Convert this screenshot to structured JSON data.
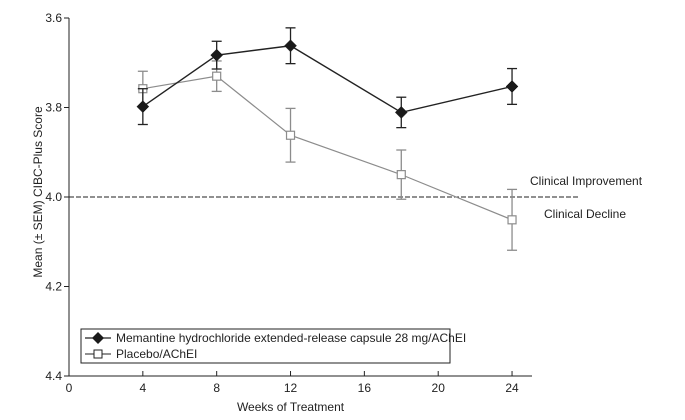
{
  "chart_data": {
    "type": "line",
    "title": "",
    "xlabel": "Weeks of Treatment",
    "ylabel": "Mean (± SEM) CIBC-Plus Score",
    "xlim": [
      0,
      25
    ],
    "ylim": [
      3.6,
      4.4
    ],
    "y_inverted": true,
    "x_ticks": [
      0,
      4,
      8,
      12,
      16,
      20,
      24
    ],
    "x_tick_labels": [
      "0",
      "4",
      "8",
      "12",
      "16",
      "20",
      "24"
    ],
    "y_ticks": [
      3.6,
      3.8,
      4.0,
      4.2,
      4.4
    ],
    "y_tick_labels": [
      "3.6",
      "3.8",
      "4.0",
      "4.2",
      "4.4"
    ],
    "grid": false,
    "reference_line": {
      "y": 4.0,
      "style": "dashed"
    },
    "annotations": [
      {
        "text": "Clinical Improvement",
        "x": 25,
        "y": 3.985
      },
      {
        "text": "Clinical Decline",
        "x": 25,
        "y": 4.02
      }
    ],
    "legend_position": "bottom-left",
    "series": [
      {
        "name": "Memantine hydrochloride extended-release capsule 28 mg/AChEI",
        "marker": "filled-diamond",
        "color": "#222222",
        "x": [
          4,
          8,
          12,
          18,
          24
        ],
        "y": [
          3.798,
          3.683,
          3.662,
          3.811,
          3.753
        ],
        "sem": [
          0.04,
          0.031,
          0.04,
          0.034,
          0.04
        ]
      },
      {
        "name": "Placebo/AChEI",
        "marker": "open-square",
        "color": "#8c8c8c",
        "x": [
          4,
          8,
          12,
          18,
          24
        ],
        "y": [
          3.758,
          3.73,
          3.862,
          3.95,
          4.051
        ],
        "sem": [
          0.039,
          0.034,
          0.06,
          0.055,
          0.068
        ]
      }
    ]
  }
}
